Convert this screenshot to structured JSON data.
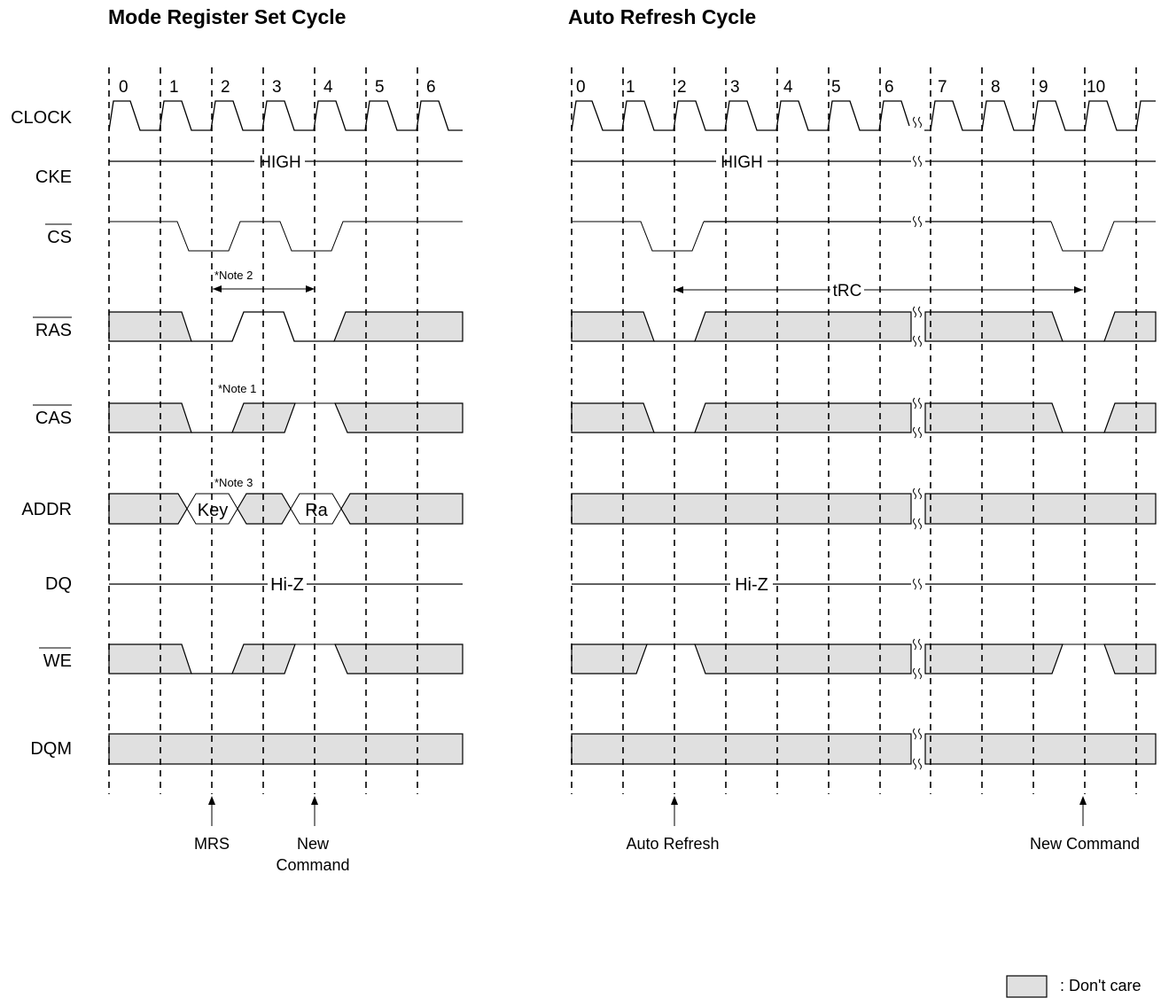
{
  "left": {
    "title": "Mode Register Set Cycle",
    "clock_numbers": [
      "0",
      "1",
      "2",
      "3",
      "4",
      "5",
      "6"
    ],
    "cke_text": "HIGH",
    "dq_text": "Hi-Z",
    "note1": "*Note 1",
    "note2": "*Note 2",
    "note3": "*Note 3",
    "addr_key": "Key",
    "addr_ra": "Ra",
    "marker_mrs": "MRS",
    "marker_new_line1": "New",
    "marker_new_line2": "Command"
  },
  "right": {
    "title": "Auto Refresh Cycle",
    "clock_numbers": [
      "0",
      "1",
      "2",
      "3",
      "4",
      "5",
      "6",
      "7",
      "8",
      "9",
      "10"
    ],
    "cke_text": "HIGH",
    "dq_text": "Hi-Z",
    "trc_text": "tRC",
    "marker_auto_refresh": "Auto Refresh",
    "marker_new_command": "New Command"
  },
  "signals": [
    "CLOCK",
    "CKE",
    "CS",
    "RAS",
    "CAS",
    "ADDR",
    "DQ",
    "WE",
    "DQM"
  ],
  "legend": {
    "text": ": Don't care",
    "swatch_color": "#e0e0e0"
  }
}
